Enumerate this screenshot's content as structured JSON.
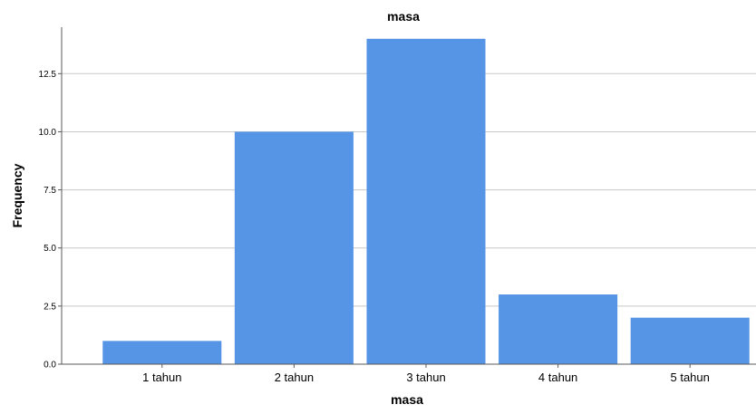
{
  "chart_data": {
    "type": "bar",
    "title": "masa",
    "xlabel": "masa",
    "ylabel": "Frequency",
    "categories": [
      "1 tahun",
      "2 tahun",
      "3 tahun",
      "4 tahun",
      "5 tahun"
    ],
    "values": [
      1,
      10,
      14,
      3,
      2
    ],
    "ylim": [
      0,
      14.5
    ],
    "yticks": [
      "0.0",
      "2.5",
      "5.0",
      "7.5",
      "10.0",
      "12.5"
    ],
    "grid": true,
    "legend": "none",
    "bar_color": "#5694e6"
  }
}
